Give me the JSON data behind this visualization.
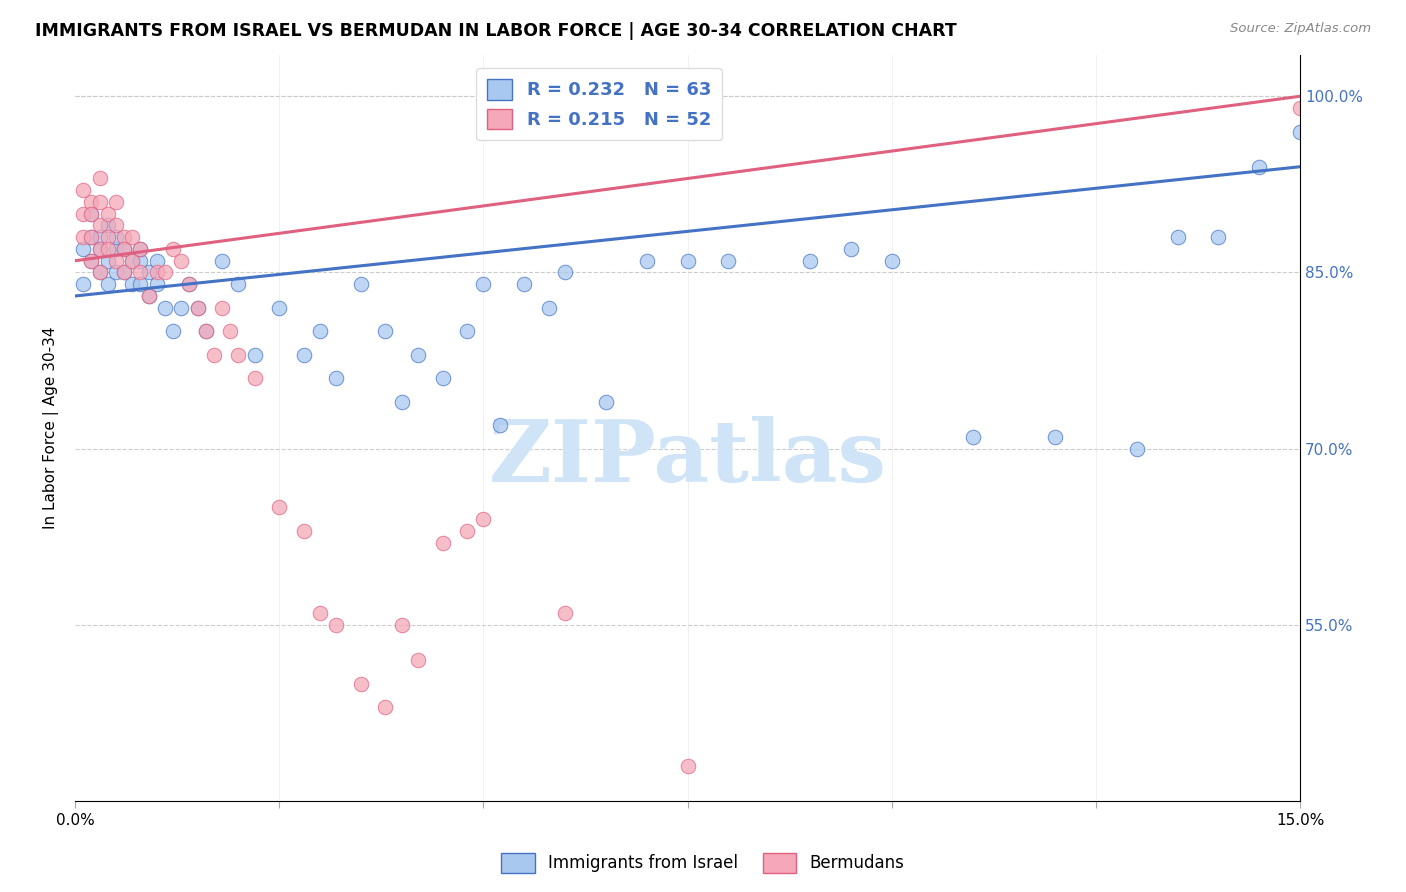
{
  "title": "IMMIGRANTS FROM ISRAEL VS BERMUDAN IN LABOR FORCE | AGE 30-34 CORRELATION CHART",
  "source": "Source: ZipAtlas.com",
  "ylabel": "In Labor Force | Age 30-34",
  "x_min": 0.0,
  "x_max": 0.15,
  "y_min": 0.4,
  "y_max": 1.035,
  "legend_R1": "R = 0.232",
  "legend_N1": "N = 63",
  "legend_R2": "R = 0.215",
  "legend_N2": "N = 52",
  "legend_label1": "Immigrants from Israel",
  "legend_label2": "Bermudans",
  "color_blue": "#A8C8F0",
  "color_pink": "#F4A8B8",
  "color_blue_line": "#4472C4",
  "color_pink_line": "#E06080",
  "watermark_text": "ZIPatlas",
  "watermark_color": "#D0E4F8",
  "y_ticks": [
    0.55,
    0.7,
    0.85,
    1.0
  ],
  "y_tick_labels": [
    "55.0%",
    "70.0%",
    "85.0%",
    "100.0%"
  ],
  "x_ticks": [
    0.0,
    0.025,
    0.05,
    0.075,
    0.1,
    0.125,
    0.15
  ],
  "blue_line_y0": 0.83,
  "blue_line_y1": 0.94,
  "pink_line_y0": 0.86,
  "pink_line_y1": 1.0,
  "israel_x": [
    0.001,
    0.001,
    0.002,
    0.002,
    0.002,
    0.003,
    0.003,
    0.003,
    0.004,
    0.004,
    0.004,
    0.005,
    0.005,
    0.005,
    0.006,
    0.006,
    0.007,
    0.007,
    0.008,
    0.008,
    0.008,
    0.009,
    0.009,
    0.01,
    0.01,
    0.011,
    0.012,
    0.013,
    0.014,
    0.015,
    0.016,
    0.018,
    0.02,
    0.022,
    0.025,
    0.028,
    0.03,
    0.032,
    0.035,
    0.038,
    0.04,
    0.042,
    0.045,
    0.048,
    0.05,
    0.052,
    0.055,
    0.058,
    0.06,
    0.065,
    0.07,
    0.075,
    0.08,
    0.09,
    0.095,
    0.1,
    0.11,
    0.12,
    0.13,
    0.135,
    0.14,
    0.145,
    0.15
  ],
  "israel_y": [
    0.84,
    0.87,
    0.86,
    0.88,
    0.9,
    0.87,
    0.85,
    0.88,
    0.86,
    0.89,
    0.84,
    0.87,
    0.85,
    0.88,
    0.85,
    0.87,
    0.86,
    0.84,
    0.86,
    0.84,
    0.87,
    0.85,
    0.83,
    0.86,
    0.84,
    0.82,
    0.8,
    0.82,
    0.84,
    0.82,
    0.8,
    0.86,
    0.84,
    0.78,
    0.82,
    0.78,
    0.8,
    0.76,
    0.84,
    0.8,
    0.74,
    0.78,
    0.76,
    0.8,
    0.84,
    0.72,
    0.84,
    0.82,
    0.85,
    0.74,
    0.86,
    0.86,
    0.86,
    0.86,
    0.87,
    0.86,
    0.71,
    0.71,
    0.7,
    0.88,
    0.88,
    0.94,
    0.97
  ],
  "bermuda_x": [
    0.001,
    0.001,
    0.001,
    0.002,
    0.002,
    0.002,
    0.002,
    0.003,
    0.003,
    0.003,
    0.003,
    0.003,
    0.004,
    0.004,
    0.004,
    0.005,
    0.005,
    0.005,
    0.006,
    0.006,
    0.006,
    0.007,
    0.007,
    0.008,
    0.008,
    0.009,
    0.01,
    0.011,
    0.012,
    0.013,
    0.014,
    0.015,
    0.016,
    0.017,
    0.018,
    0.019,
    0.02,
    0.022,
    0.025,
    0.028,
    0.03,
    0.032,
    0.035,
    0.038,
    0.04,
    0.042,
    0.045,
    0.048,
    0.05,
    0.06,
    0.075,
    0.15
  ],
  "bermuda_y": [
    0.9,
    0.92,
    0.88,
    0.91,
    0.9,
    0.88,
    0.86,
    0.93,
    0.91,
    0.89,
    0.87,
    0.85,
    0.88,
    0.9,
    0.87,
    0.91,
    0.89,
    0.86,
    0.88,
    0.87,
    0.85,
    0.88,
    0.86,
    0.87,
    0.85,
    0.83,
    0.85,
    0.85,
    0.87,
    0.86,
    0.84,
    0.82,
    0.8,
    0.78,
    0.82,
    0.8,
    0.78,
    0.76,
    0.65,
    0.63,
    0.56,
    0.55,
    0.5,
    0.48,
    0.55,
    0.52,
    0.62,
    0.63,
    0.64,
    0.56,
    0.43,
    0.99
  ]
}
